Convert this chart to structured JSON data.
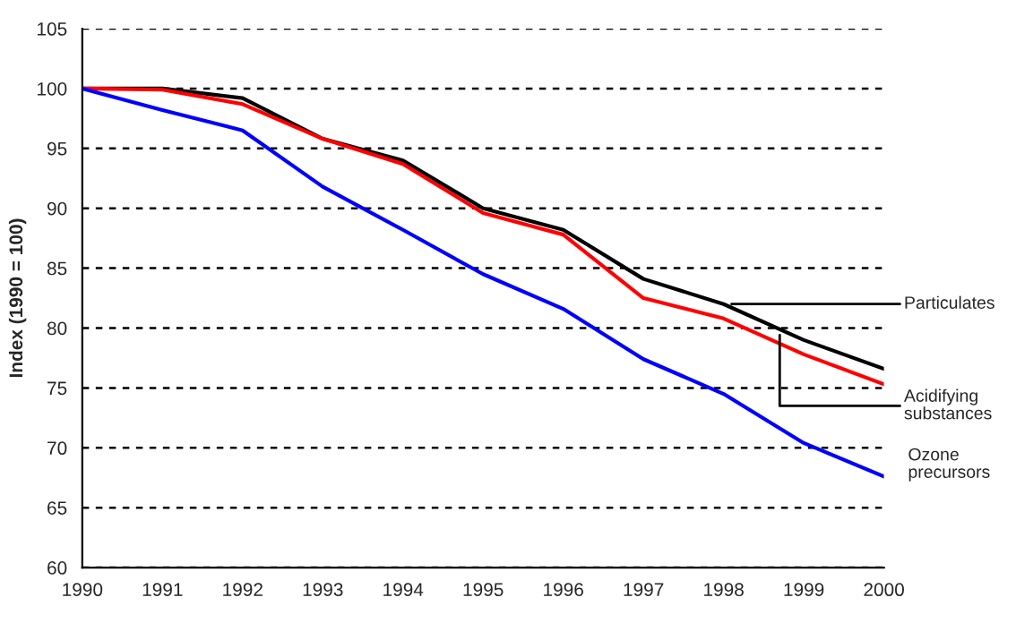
{
  "chart_data": {
    "type": "line",
    "ylabel": "Index (1990 = 100)",
    "x": [
      1990,
      1991,
      1992,
      1993,
      1994,
      1995,
      1996,
      1997,
      1998,
      1999,
      2000
    ],
    "series": [
      {
        "color": "#000000",
        "values": [
          100,
          100,
          99.2,
          95.8,
          94,
          90,
          88.2,
          84.1,
          82,
          79,
          76.6
        ]
      },
      {
        "color": "#ff0000",
        "values": [
          100,
          99.9,
          98.7,
          95.8,
          93.7,
          89.6,
          87.8,
          82.5,
          80.8,
          77.8,
          75.3
        ]
      },
      {
        "color": "#0000ff",
        "values": [
          100,
          98.2,
          96.5,
          91.8,
          88.2,
          84.5,
          81.6,
          77.4,
          74.5,
          70.4,
          67.6
        ]
      }
    ],
    "annotations": [
      {
        "text": "Particulates",
        "x": 1998.1,
        "y": 82
      },
      {
        "text": "Acidifying\nsubstances",
        "x": 1998.7,
        "y": 79.4
      },
      {
        "text": "Ozone\nprecursors",
        "x": 2000,
        "y": 67.6
      }
    ],
    "xlim": [
      1990,
      2000
    ],
    "ylim": [
      60,
      105
    ],
    "xticks": [
      1990,
      1991,
      1992,
      1993,
      1994,
      1995,
      1996,
      1997,
      1998,
      1999,
      2000
    ],
    "yticks": [
      60,
      65,
      70,
      75,
      80,
      85,
      90,
      95,
      100,
      105
    ],
    "grid": "y",
    "legend": false,
    "marker": "none",
    "line_style": "solid"
  }
}
